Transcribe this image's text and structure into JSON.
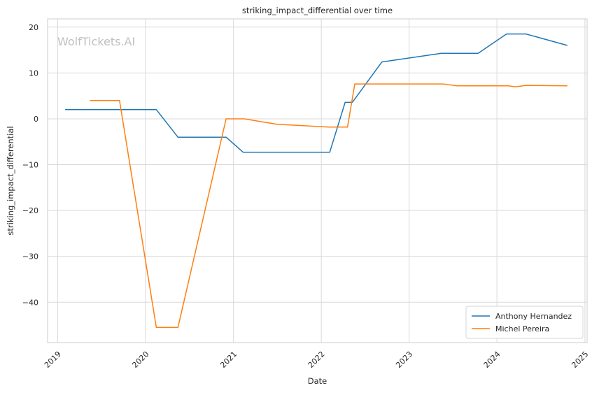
{
  "chart_data": {
    "type": "line",
    "title": "striking_impact_differential over time",
    "xlabel": "Date",
    "ylabel": "striking_impact_differential",
    "watermark": "WolfTickets.AI",
    "xlim": [
      "2018-11-20",
      "2025-01-10"
    ],
    "ylim": [
      -48.8,
      21.8
    ],
    "x_ticks": [
      "2019",
      "2020",
      "2021",
      "2022",
      "2023",
      "2024",
      "2025"
    ],
    "y_ticks": [
      20,
      10,
      0,
      -10,
      -20,
      -30,
      -40
    ],
    "y_tick_labels": [
      "20",
      "10",
      "0",
      "−10",
      "−20",
      "−30",
      "−40"
    ],
    "grid": true,
    "legend_position": "lower-right",
    "series": [
      {
        "name": "Anthony Hernandez",
        "color": "#1f77b4",
        "points": [
          [
            "2019-02-01",
            2.0
          ],
          [
            "2020-02-15",
            2.0
          ],
          [
            "2020-05-15",
            -4.0
          ],
          [
            "2020-12-01",
            -4.0
          ],
          [
            "2021-02-10",
            -7.3
          ],
          [
            "2022-02-05",
            -7.3
          ],
          [
            "2022-04-10",
            3.6
          ],
          [
            "2022-05-10",
            3.6
          ],
          [
            "2022-09-10",
            12.4
          ],
          [
            "2023-05-15",
            14.3
          ],
          [
            "2023-10-15",
            14.3
          ],
          [
            "2024-02-10",
            18.5
          ],
          [
            "2024-05-01",
            18.5
          ],
          [
            "2024-10-20",
            16.0
          ]
        ]
      },
      {
        "name": "Michel Pereira",
        "color": "#ff7f0e",
        "points": [
          [
            "2019-05-15",
            4.0
          ],
          [
            "2019-09-15",
            4.0
          ],
          [
            "2020-02-15",
            -45.5
          ],
          [
            "2020-05-15",
            -45.5
          ],
          [
            "2020-12-01",
            0.0
          ],
          [
            "2021-02-15",
            0.0
          ],
          [
            "2021-07-01",
            -1.2
          ],
          [
            "2022-02-01",
            -1.8
          ],
          [
            "2022-04-20",
            -1.8
          ],
          [
            "2022-05-20",
            7.6
          ],
          [
            "2023-05-20",
            7.6
          ],
          [
            "2023-07-20",
            7.2
          ],
          [
            "2024-02-15",
            7.2
          ],
          [
            "2024-03-20",
            7.0
          ],
          [
            "2024-05-01",
            7.3
          ],
          [
            "2024-10-20",
            7.2
          ]
        ]
      }
    ]
  }
}
